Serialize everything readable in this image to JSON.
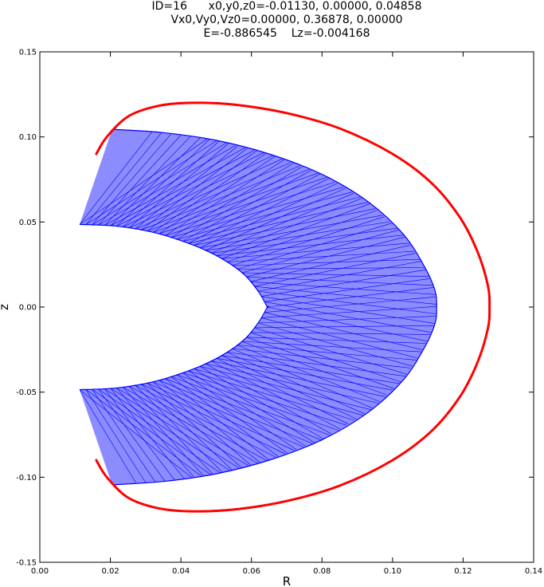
{
  "title": {
    "line1": "ID=16      x0,y0,z0=-0.01130, 0.00000, 0.04858",
    "line2": "Vx0,Vy0,Vz0=0.00000, 0.36878, 0.00000",
    "line3": "E=-0.886545    Lz=-0.004168"
  },
  "chart_data": {
    "type": "line",
    "xlabel": "R",
    "ylabel": "z",
    "xlim": [
      0.0,
      0.14
    ],
    "ylim": [
      -0.15,
      0.15
    ],
    "xticks": [
      "0.00",
      "0.02",
      "0.04",
      "0.06",
      "0.08",
      "0.10",
      "0.12",
      "0.14"
    ],
    "yticks": [
      "0.15",
      "0.10",
      "0.05",
      "0.00",
      "-0.05",
      "-0.10",
      "-0.15"
    ],
    "grid": false,
    "series": [
      {
        "role": "orbit",
        "color": "#0000ff",
        "inner_boundary": {
          "x": [
            0.0113,
            0.022,
            0.033,
            0.044,
            0.052,
            0.058,
            0.062,
            0.0645,
            0.0645,
            0.062,
            0.058,
            0.052,
            0.044,
            0.033,
            0.022,
            0.0113
          ],
          "y": [
            0.04858,
            0.0475,
            0.0435,
            0.036,
            0.028,
            0.019,
            0.009,
            0.0,
            0.0,
            -0.009,
            -0.019,
            -0.028,
            -0.036,
            -0.0435,
            -0.0475,
            -0.04858
          ]
        },
        "outer_boundary": {
          "x": [
            0.0205,
            0.035,
            0.05,
            0.065,
            0.08,
            0.093,
            0.103,
            0.109,
            0.112,
            0.1125,
            0.112,
            0.109,
            0.103,
            0.093,
            0.08,
            0.065,
            0.05,
            0.035,
            0.0205
          ],
          "y": [
            0.1045,
            0.1025,
            0.098,
            0.09,
            0.078,
            0.062,
            0.043,
            0.024,
            0.01,
            0.0,
            -0.01,
            -0.024,
            -0.043,
            -0.062,
            -0.078,
            -0.09,
            -0.098,
            -0.1025,
            -0.1045
          ]
        }
      },
      {
        "role": "zero-velocity curve",
        "color": "#ff0000",
        "x": [
          0.016,
          0.019,
          0.025,
          0.033,
          0.042,
          0.055,
          0.07,
          0.085,
          0.1,
          0.111,
          0.119,
          0.124,
          0.127,
          0.1275,
          0.127,
          0.124,
          0.119,
          0.111,
          0.1,
          0.085,
          0.07,
          0.055,
          0.042,
          0.033,
          0.025,
          0.019,
          0.016
        ],
        "y": [
          0.09,
          0.1,
          0.112,
          0.118,
          0.12,
          0.119,
          0.114,
          0.105,
          0.09,
          0.073,
          0.053,
          0.033,
          0.013,
          0.0,
          -0.013,
          -0.033,
          -0.053,
          -0.073,
          -0.09,
          -0.105,
          -0.114,
          -0.119,
          -0.12,
          -0.118,
          -0.112,
          -0.1,
          -0.09
        ]
      }
    ]
  }
}
